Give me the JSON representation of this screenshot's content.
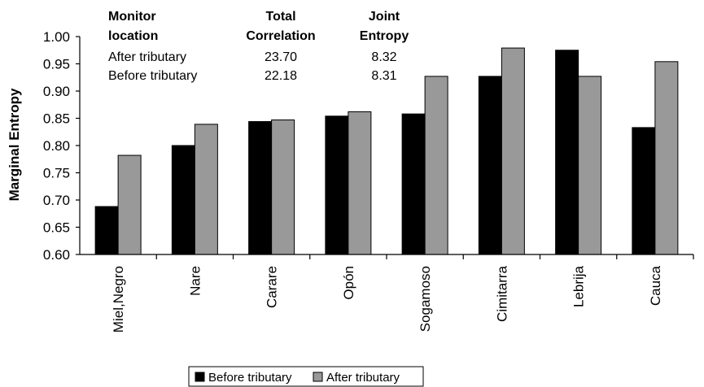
{
  "chart_data": {
    "type": "bar",
    "ylabel": "Marginal Entropy",
    "xlabel": "",
    "ylim": [
      0.6,
      1.0
    ],
    "yticks": [
      "0.60",
      "0.65",
      "0.70",
      "0.75",
      "0.80",
      "0.85",
      "0.90",
      "0.95",
      "1.00"
    ],
    "categories": [
      "Miel,Negro",
      "Nare",
      "Carare",
      "Opón",
      "Sogamoso",
      "Cimitarra",
      "Lebrija",
      "Cauca"
    ],
    "series": [
      {
        "name": "Before tributary",
        "color": "#000000",
        "values": [
          0.688,
          0.8,
          0.844,
          0.854,
          0.858,
          0.927,
          0.975,
          0.833
        ]
      },
      {
        "name": "After tributary",
        "color": "#999999",
        "values": [
          0.782,
          0.839,
          0.847,
          0.862,
          0.927,
          0.979,
          0.927,
          0.954
        ]
      }
    ],
    "legend_position": "bottom-center",
    "grid": false,
    "table": {
      "headers": [
        [
          "Monitor",
          "location"
        ],
        [
          "Total",
          "Correlation"
        ],
        [
          "Joint",
          "Entropy"
        ]
      ],
      "rows": [
        [
          "After tributary",
          "23.70",
          "8.32"
        ],
        [
          "Before tributary",
          "22.18",
          "8.31"
        ]
      ]
    }
  }
}
